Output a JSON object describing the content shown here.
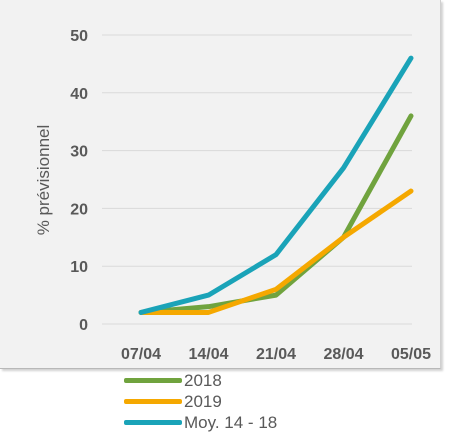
{
  "chart_data": {
    "type": "line",
    "x": [
      "07/04",
      "14/04",
      "21/04",
      "28/04",
      "05/05"
    ],
    "series": [
      {
        "name": "2018",
        "color": "#70a33e",
        "values": [
          2,
          3,
          5,
          15,
          36
        ]
      },
      {
        "name": "2019",
        "color": "#f5a800",
        "values": [
          2,
          2,
          6,
          15,
          23
        ]
      },
      {
        "name": "Moy. 14 - 18",
        "color": "#1aa3b8",
        "values": [
          2,
          5,
          12,
          27,
          46
        ]
      }
    ],
    "ylabel": "% prévisionnel",
    "xlabel": "",
    "ylim": [
      0,
      50
    ],
    "yticks": [
      "0",
      "10",
      "20",
      "30",
      "40",
      "50"
    ],
    "grid": true,
    "legend_position": "bottom"
  }
}
